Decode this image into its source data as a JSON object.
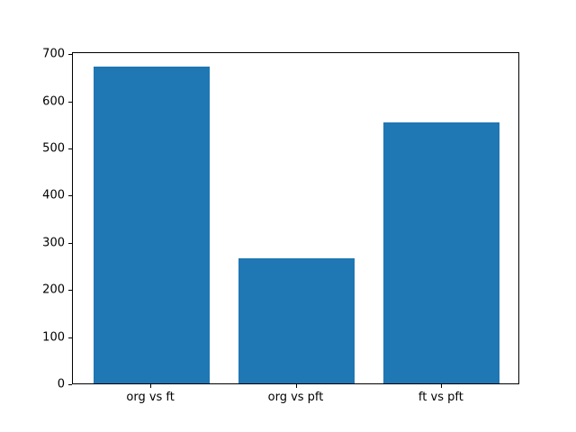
{
  "chart_data": {
    "type": "bar",
    "categories": [
      "org vs ft",
      "org vs pft",
      "ft vs pft"
    ],
    "values": [
      671,
      265,
      554
    ],
    "title": "",
    "xlabel": "",
    "ylabel": "",
    "yticks": [
      0,
      100,
      200,
      300,
      400,
      500,
      600,
      700
    ],
    "ylim": [
      0,
      704
    ],
    "xlim": [
      -0.54,
      2.54
    ],
    "bar_width_units": 0.8,
    "bar_color": "#1f77b4",
    "spine_color": "#000000",
    "tick_label_color": "#000000",
    "background_color": "#ffffff",
    "grid": false,
    "legend": null
  }
}
